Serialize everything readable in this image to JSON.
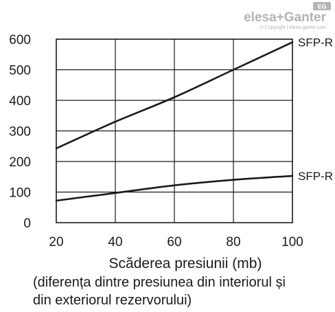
{
  "logo": {
    "text": "elesa+Ganter",
    "copyright": "© Copyright | elesa-ganter.com",
    "badge": "EG"
  },
  "chart_data": {
    "type": "line",
    "xlabel": "Scăderea presiunii (mb)",
    "note_lines": [
      "(diferența dintre presiunea din interiorul și",
      "din exteriorul rezervorului)"
    ],
    "xlim": [
      20,
      100
    ],
    "ylim": [
      0,
      600
    ],
    "xticks": [
      20,
      40,
      60,
      80,
      100
    ],
    "yticks": [
      0,
      100,
      200,
      300,
      400,
      500,
      600
    ],
    "grid": true,
    "series": [
      {
        "name": "SFP-R",
        "x": [
          20,
          40,
          60,
          80,
          100
        ],
        "y": [
          243,
          330,
          410,
          500,
          590
        ]
      },
      {
        "name": "SFP-R",
        "x": [
          20,
          40,
          60,
          80,
          100
        ],
        "y": [
          72,
          97,
          122,
          140,
          153
        ]
      }
    ]
  }
}
